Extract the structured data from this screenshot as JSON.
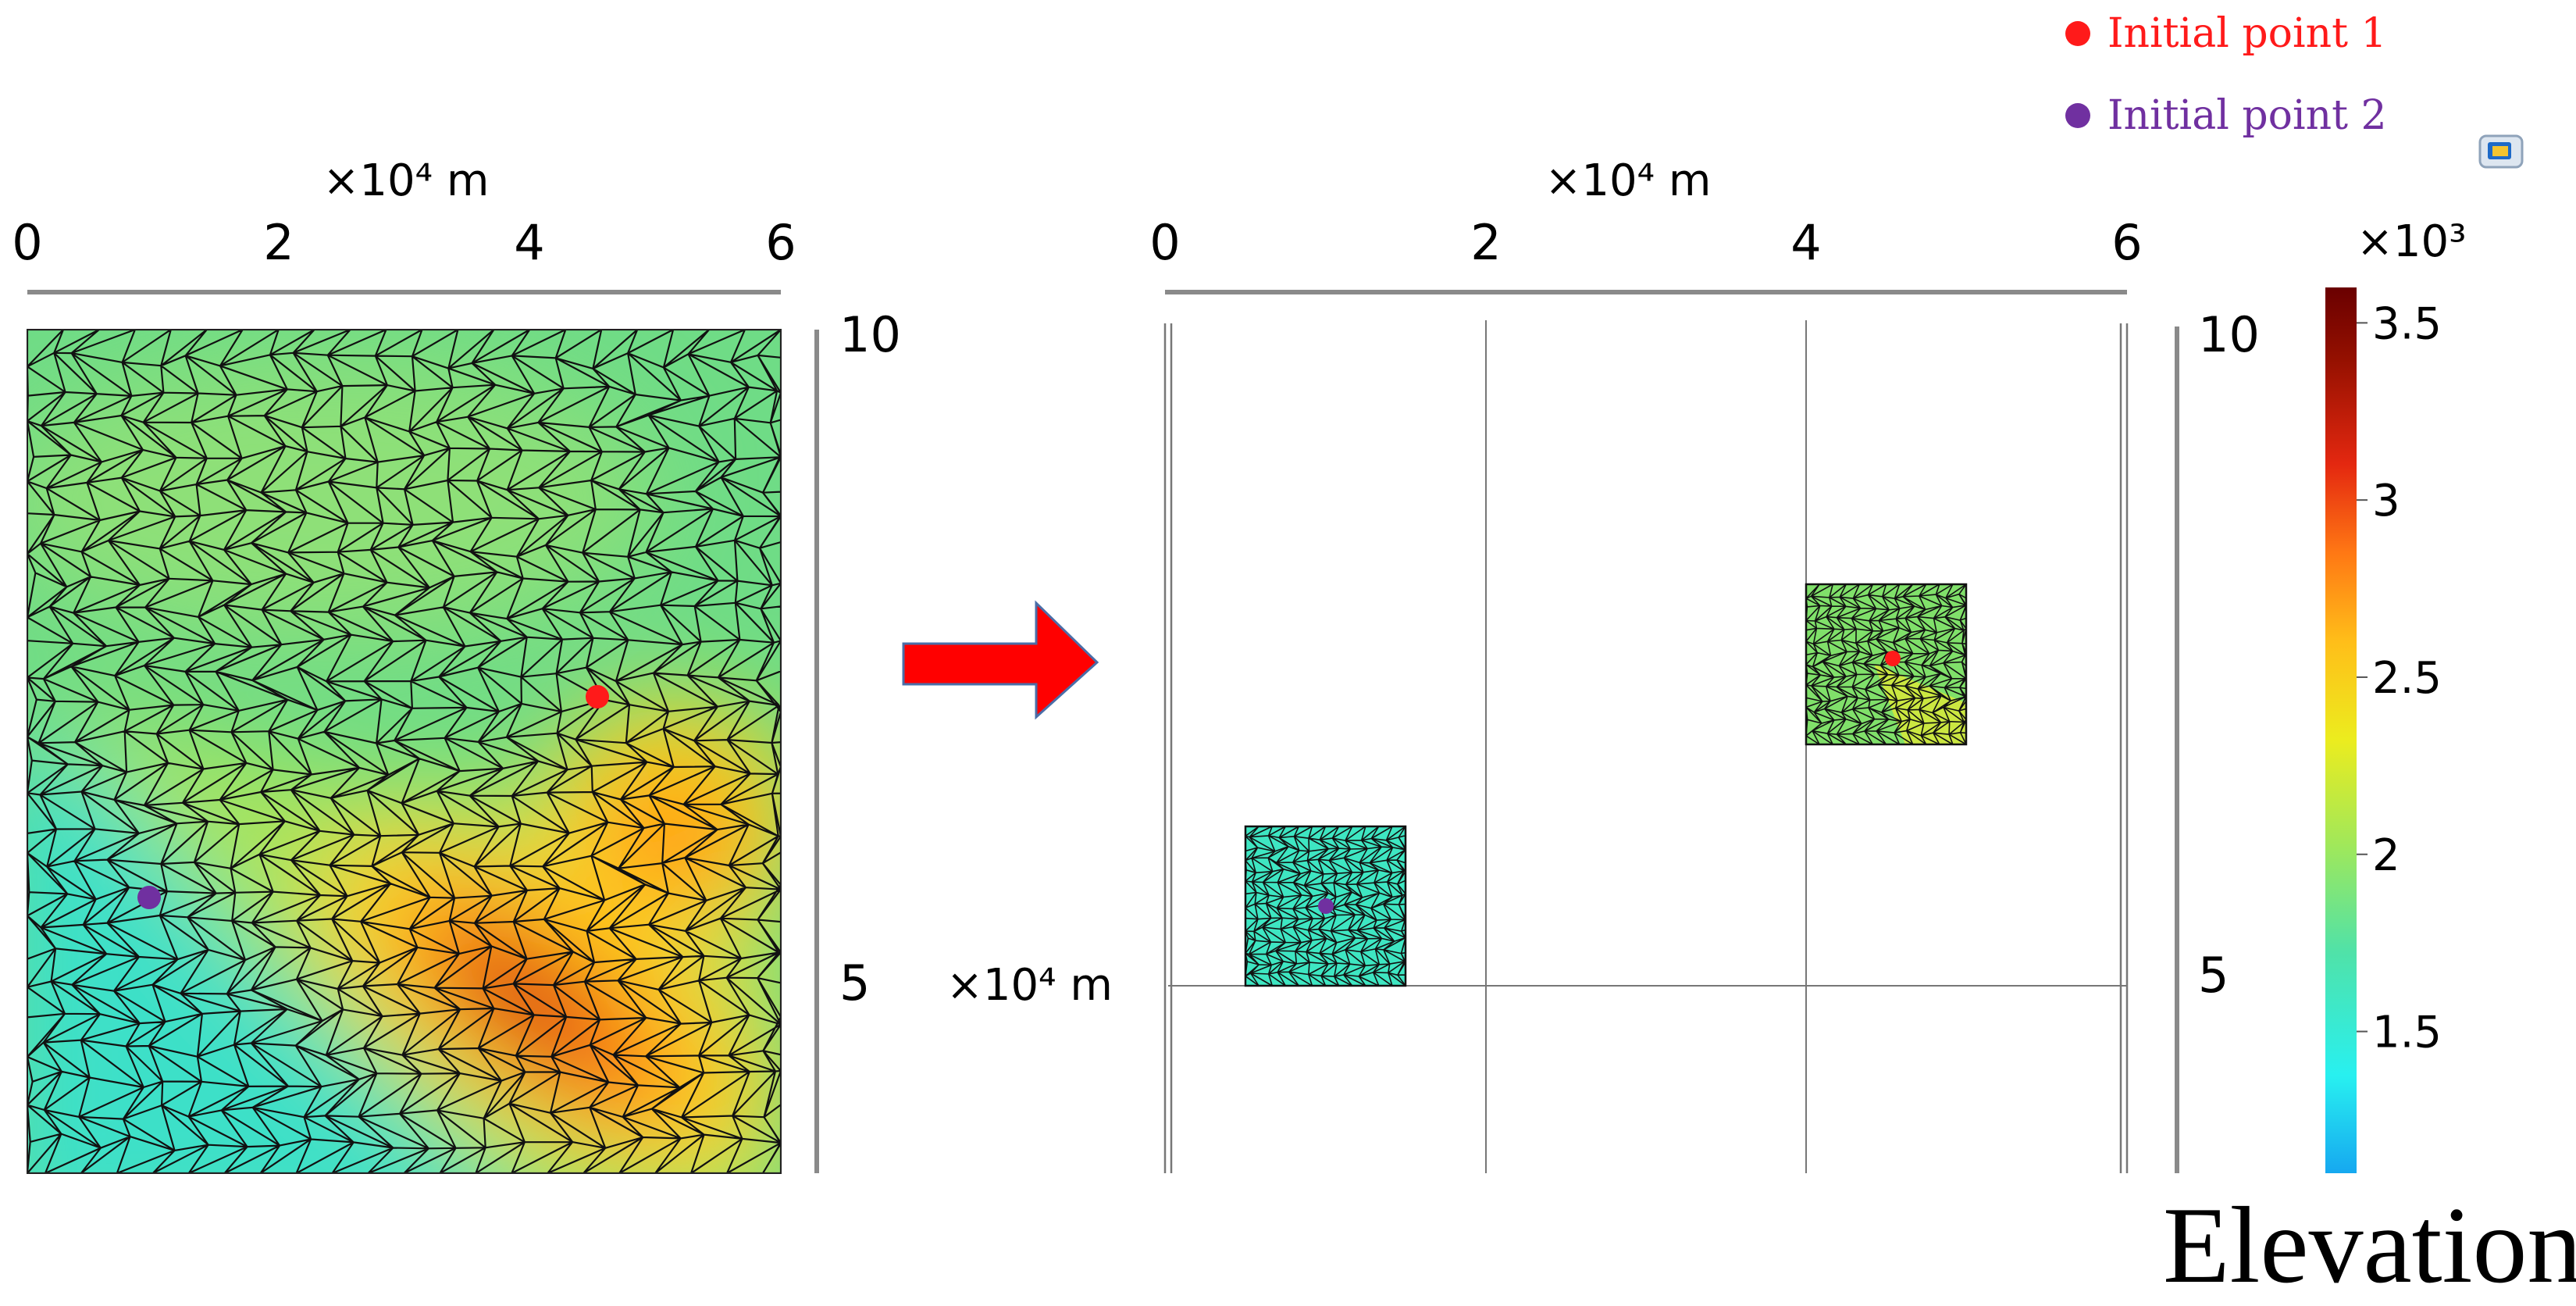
{
  "legend": {
    "items": [
      {
        "label": "Initial point 1",
        "color": "#ff1a1a"
      },
      {
        "label": "Initial point 2",
        "color": "#7030a0"
      }
    ]
  },
  "left_panel": {
    "x_axis": {
      "unit_label": "×10⁴ m",
      "ticks": [
        "0",
        "2",
        "4",
        "6"
      ]
    },
    "y_axis": {
      "ticks": [
        "10",
        "5"
      ]
    },
    "points": [
      {
        "label": "Initial point 1",
        "x_e4m": 4.55,
        "y_e4m": 7.2
      },
      {
        "label": "Initial point 2",
        "x_e4m": 0.95,
        "y_e4m": 5.85
      }
    ]
  },
  "right_panel": {
    "x_axis": {
      "unit_label": "×10⁴ m",
      "ticks": [
        "0",
        "2",
        "4",
        "6"
      ]
    },
    "y_axis": {
      "unit_label": "×10⁴ m",
      "ticks": [
        "10",
        "5"
      ]
    },
    "subdomains": [
      {
        "point": "Initial point 2",
        "x_range_e4m": [
          0.5,
          1.5
        ],
        "y_range_e4m": [
          5.0,
          6.2
        ]
      },
      {
        "point": "Initial point 1",
        "x_range_e4m": [
          4.0,
          5.0
        ],
        "y_range_e4m": [
          6.8,
          8.0
        ]
      }
    ]
  },
  "colorbar": {
    "title": "Elevation",
    "scale_label": "×10³",
    "ticks": [
      "3.5",
      "3",
      "2.5",
      "2",
      "1.5"
    ],
    "tick_values": [
      3.5,
      3.0,
      2.5,
      2.0,
      1.5
    ],
    "range": [
      1.1,
      3.6
    ],
    "colormap": [
      "#16a8f0",
      "#28f0f0",
      "#50e2a8",
      "#a0e85a",
      "#ecec1e",
      "#ffbe19",
      "#ff7814",
      "#e42810",
      "#941000",
      "#6a0000"
    ]
  },
  "icons": {
    "arrow": "right-arrow-icon",
    "app": "window-icon"
  }
}
